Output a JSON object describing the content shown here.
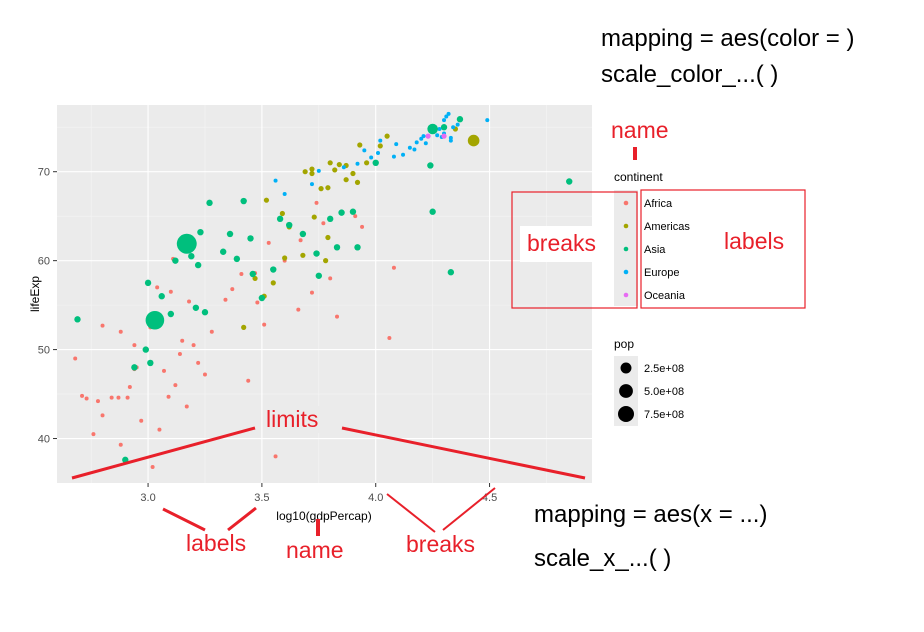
{
  "annotations": {
    "color_mapping": "mapping = aes(color = )",
    "color_scale": "scale_color_...( )",
    "x_mapping": "mapping = aes(x = ...)",
    "x_scale": "scale_x_...( )",
    "legend_name": "name",
    "legend_breaks": "breaks",
    "legend_labels": "labels",
    "limits": "limits",
    "axis_labels": "labels",
    "axis_name": "name",
    "axis_breaks": "breaks"
  },
  "colors": {
    "panel": "#ebebeb",
    "grid_major": "#ffffff",
    "grid_minor": "#f5f5f5",
    "annotation": "#e8202a",
    "Africa": "#F8766D",
    "Americas": "#A3A500",
    "Asia": "#00BF7D",
    "Europe": "#00B0F6",
    "Oceania": "#E76BF3"
  },
  "chart_data": {
    "type": "scatter",
    "xlabel": "log10(gdpPercap)",
    "ylabel": "lifeExp",
    "xlim": [
      2.6,
      4.95
    ],
    "ylim": [
      35,
      77.5
    ],
    "xticks": [
      3.0,
      3.5,
      4.0,
      4.5
    ],
    "xtick_labels": [
      "3.0",
      "3.5",
      "4.0",
      "4.5"
    ],
    "yticks": [
      40,
      50,
      60,
      70
    ],
    "ytick_labels": [
      "40",
      "50",
      "60",
      "70"
    ],
    "grid": true,
    "legend_placement": "right",
    "color_legend": {
      "title": "continent",
      "entries": [
        "Africa",
        "Americas",
        "Asia",
        "Europe",
        "Oceania"
      ]
    },
    "size_legend": {
      "title": "pop",
      "entries": [
        {
          "label": "2.5e+08",
          "value": 250000000
        },
        {
          "label": "5.0e+08",
          "value": 500000000
        },
        {
          "label": "7.5e+08",
          "value": 750000000
        }
      ]
    },
    "series": [
      {
        "name": "Africa",
        "points": [
          [
            2.71,
            44.8
          ],
          [
            2.73,
            44.5
          ],
          [
            2.76,
            40.5
          ],
          [
            2.78,
            44.2
          ],
          [
            2.8,
            42.6
          ],
          [
            2.84,
            44.6
          ],
          [
            2.87,
            44.6
          ],
          [
            2.88,
            39.3
          ],
          [
            2.91,
            44.6
          ],
          [
            2.92,
            45.8
          ],
          [
            2.94,
            47.8
          ],
          [
            2.95,
            48.0
          ],
          [
            2.97,
            42.0
          ],
          [
            3.02,
            36.8
          ],
          [
            3.05,
            41.0
          ],
          [
            3.07,
            47.6
          ],
          [
            3.09,
            44.7
          ],
          [
            3.12,
            46.0
          ],
          [
            3.14,
            49.5
          ],
          [
            3.17,
            43.6
          ],
          [
            3.2,
            50.5
          ],
          [
            3.22,
            48.5
          ],
          [
            3.25,
            47.2
          ],
          [
            3.34,
            55.6
          ],
          [
            3.37,
            56.8
          ],
          [
            3.44,
            46.5
          ],
          [
            3.47,
            58.6
          ],
          [
            3.48,
            55.3
          ],
          [
            3.56,
            38.0
          ],
          [
            3.6,
            60.0
          ],
          [
            3.67,
            62.3
          ],
          [
            3.72,
            56.4
          ],
          [
            3.77,
            64.2
          ],
          [
            3.8,
            58.0
          ],
          [
            3.83,
            53.7
          ],
          [
            3.94,
            63.8
          ],
          [
            4.06,
            51.3
          ],
          [
            4.08,
            59.2
          ],
          [
            2.8,
            52.7
          ],
          [
            2.88,
            52.0
          ],
          [
            2.94,
            50.5
          ],
          [
            3.01,
            52.5
          ],
          [
            3.04,
            57.0
          ],
          [
            3.1,
            56.5
          ],
          [
            3.11,
            60.2
          ],
          [
            3.15,
            51.0
          ],
          [
            3.28,
            52.0
          ],
          [
            3.41,
            58.5
          ],
          [
            3.51,
            52.8
          ],
          [
            3.53,
            62.0
          ],
          [
            3.66,
            54.5
          ],
          [
            3.74,
            66.5
          ],
          [
            3.91,
            65.0
          ],
          [
            2.68,
            49.0
          ],
          [
            3.18,
            55.4
          ]
        ]
      },
      {
        "name": "Americas",
        "points": [
          [
            3.52,
            66.8
          ],
          [
            3.59,
            65.3
          ],
          [
            3.62,
            63.8
          ],
          [
            3.68,
            60.6
          ],
          [
            3.72,
            69.8
          ],
          [
            3.73,
            64.9
          ],
          [
            3.76,
            68.1
          ],
          [
            3.79,
            68.2
          ],
          [
            3.8,
            71.0
          ],
          [
            3.82,
            70.2
          ],
          [
            3.84,
            70.8
          ],
          [
            3.87,
            70.7
          ],
          [
            3.9,
            69.8
          ],
          [
            3.93,
            73.0
          ],
          [
            3.96,
            71.0
          ],
          [
            4.02,
            72.9
          ],
          [
            4.05,
            74.0
          ],
          [
            3.87,
            69.1
          ],
          [
            3.79,
            62.6
          ],
          [
            3.78,
            60.0
          ],
          [
            3.55,
            57.5
          ],
          [
            3.42,
            52.5
          ],
          [
            3.51,
            56.0
          ],
          [
            3.47,
            58.0
          ],
          [
            3.6,
            60.3
          ],
          [
            3.69,
            70.0
          ],
          [
            3.72,
            70.3
          ],
          [
            3.92,
            68.8
          ],
          [
            4.35,
            74.8
          ],
          [
            4.43,
            73.5
          ]
        ]
      },
      {
        "name": "Asia",
        "points": [
          [
            2.69,
            53.4
          ],
          [
            2.9,
            37.6
          ],
          [
            2.94,
            48.0
          ],
          [
            2.99,
            50.0
          ],
          [
            3.0,
            57.5
          ],
          [
            3.03,
            53.3
          ],
          [
            3.06,
            56.0
          ],
          [
            3.12,
            60.0
          ],
          [
            3.17,
            61.9
          ],
          [
            3.19,
            60.5
          ],
          [
            3.21,
            54.7
          ],
          [
            3.22,
            59.5
          ],
          [
            3.27,
            66.5
          ],
          [
            3.33,
            61.0
          ],
          [
            3.36,
            63.0
          ],
          [
            3.42,
            66.7
          ],
          [
            3.46,
            58.5
          ],
          [
            3.5,
            55.8
          ],
          [
            3.55,
            59.0
          ],
          [
            3.62,
            64.0
          ],
          [
            3.68,
            63.0
          ],
          [
            3.74,
            60.8
          ],
          [
            3.8,
            64.7
          ],
          [
            3.83,
            61.5
          ],
          [
            3.9,
            65.5
          ],
          [
            4.0,
            71.0
          ],
          [
            4.25,
            65.5
          ],
          [
            4.24,
            70.7
          ],
          [
            4.3,
            75.0
          ],
          [
            4.33,
            58.7
          ],
          [
            4.37,
            75.9
          ],
          [
            4.85,
            68.9
          ],
          [
            3.92,
            61.5
          ],
          [
            3.1,
            54.0
          ],
          [
            3.45,
            62.5
          ],
          [
            3.25,
            54.2
          ],
          [
            3.01,
            48.5
          ],
          [
            3.58,
            64.7
          ],
          [
            3.75,
            58.3
          ],
          [
            3.85,
            65.4
          ],
          [
            3.23,
            63.2
          ],
          [
            3.39,
            60.2
          ]
        ]
      },
      {
        "name": "Europe",
        "points": [
          [
            3.56,
            69.0
          ],
          [
            3.6,
            67.5
          ],
          [
            3.72,
            68.6
          ],
          [
            3.75,
            70.1
          ],
          [
            3.86,
            70.5
          ],
          [
            3.92,
            70.9
          ],
          [
            3.95,
            72.4
          ],
          [
            3.98,
            71.6
          ],
          [
            4.01,
            72.1
          ],
          [
            4.09,
            73.1
          ],
          [
            4.12,
            71.9
          ],
          [
            4.15,
            72.7
          ],
          [
            4.18,
            73.3
          ],
          [
            4.21,
            74.0
          ],
          [
            4.22,
            73.2
          ],
          [
            4.25,
            74.5
          ],
          [
            4.27,
            74.1
          ],
          [
            4.29,
            73.9
          ],
          [
            4.3,
            74.3
          ],
          [
            4.31,
            76.2
          ],
          [
            4.32,
            76.5
          ],
          [
            4.33,
            73.5
          ],
          [
            4.34,
            75.0
          ],
          [
            4.36,
            75.3
          ],
          [
            4.3,
            75.8
          ],
          [
            4.33,
            73.8
          ],
          [
            4.49,
            75.8
          ],
          [
            4.02,
            73.5
          ],
          [
            4.17,
            72.5
          ],
          [
            4.08,
            71.7
          ],
          [
            4.2,
            73.7
          ],
          [
            4.28,
            74.8
          ]
        ]
      },
      {
        "name": "Oceania",
        "points": [
          [
            4.3,
            74.0
          ],
          [
            4.23,
            74.0
          ]
        ]
      }
    ],
    "large_points": [
      {
        "x": 3.17,
        "y": 61.9,
        "series": "Asia",
        "pop": 1318000000
      },
      {
        "x": 3.03,
        "y": 53.3,
        "series": "Asia",
        "pop": 1110000000
      },
      {
        "x": 4.43,
        "y": 73.5,
        "series": "Americas",
        "pop": 301000000
      },
      {
        "x": 4.25,
        "y": 74.8,
        "series": "Asia",
        "pop": 223000000
      }
    ]
  }
}
